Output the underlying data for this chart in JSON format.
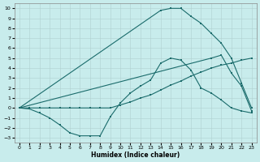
{
  "xlabel": "Humidex (Indice chaleur)",
  "bg_color": "#c8ecec",
  "grid_color": "#b0d0d0",
  "line_color": "#1a6b6b",
  "xlim": [
    -0.5,
    23.5
  ],
  "ylim": [
    -3.5,
    10.5
  ],
  "xticks": [
    0,
    1,
    2,
    3,
    4,
    5,
    6,
    7,
    8,
    9,
    10,
    11,
    12,
    13,
    14,
    15,
    16,
    17,
    18,
    19,
    20,
    21,
    22,
    23
  ],
  "yticks": [
    -3,
    -2,
    -1,
    0,
    1,
    2,
    3,
    4,
    5,
    6,
    7,
    8,
    9,
    10
  ],
  "line1_x": [
    0,
    1,
    2,
    3,
    4,
    5,
    6,
    7,
    8,
    9,
    10,
    11,
    12,
    13,
    14,
    15,
    16,
    17,
    18,
    19,
    20,
    21,
    22,
    23
  ],
  "line1_y": [
    0,
    -0.1,
    -0.5,
    -1.0,
    -1.7,
    -2.5,
    -2.8,
    -2.8,
    -2.8,
    -0.9,
    0.5,
    1.5,
    2.2,
    2.8,
    4.5,
    5.0,
    4.8,
    3.8,
    2.0,
    1.5,
    0.8,
    0.0,
    -0.3,
    -0.5
  ],
  "line2_x": [
    0,
    1,
    2,
    3,
    4,
    5,
    6,
    7,
    8,
    9,
    10,
    11,
    12,
    13,
    14,
    15,
    16,
    17,
    18,
    19,
    20,
    21,
    22,
    23
  ],
  "line2_y": [
    0,
    0,
    0,
    0,
    0,
    0,
    0,
    0,
    0,
    0,
    0.3,
    0.6,
    1.0,
    1.3,
    1.8,
    2.3,
    2.7,
    3.2,
    3.6,
    4.0,
    4.3,
    4.5,
    4.8,
    5.0
  ],
  "line3_x": [
    0,
    14,
    15,
    16,
    17,
    18,
    19,
    20,
    21,
    22,
    23
  ],
  "line3_y": [
    0,
    9.8,
    10.0,
    10.0,
    9.2,
    8.5,
    7.5,
    6.5,
    5.0,
    2.5,
    0.0
  ],
  "line4_x": [
    0,
    19,
    20,
    21,
    22,
    23
  ],
  "line4_y": [
    0,
    5.0,
    5.3,
    3.5,
    2.2,
    -0.3
  ],
  "figsize": [
    3.2,
    2.0
  ],
  "dpi": 100
}
